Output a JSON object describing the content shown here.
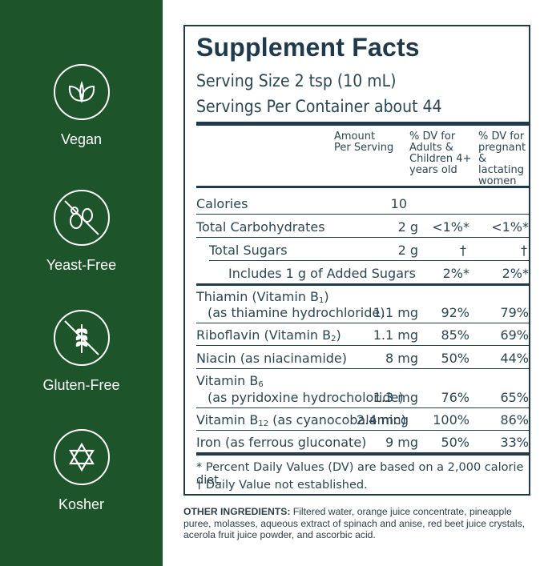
{
  "badges": [
    {
      "label": "Vegan",
      "icon": "leaf-icon"
    },
    {
      "label": "Yeast-Free",
      "icon": "no-yeast-icon"
    },
    {
      "label": "Gluten-Free",
      "icon": "no-wheat-icon"
    },
    {
      "label": "Kosher",
      "icon": "star-of-david-icon"
    }
  ],
  "facts": {
    "title": "Supplement Facts",
    "serving_size": "Serving Size 2 tsp (10 mL)",
    "servings_per_container": "Servings Per Container about 44",
    "col_amount": [
      "Amount",
      "Per Serving"
    ],
    "col_dv_adults": [
      "% DV for",
      "Adults &",
      "Children 4+",
      "years old"
    ],
    "col_dv_pregnant": [
      "% DV for",
      "pregnant",
      "& lactating",
      "women"
    ],
    "rows": [
      {
        "name": "Calories",
        "amount": "10",
        "dv_adults": "",
        "dv_pregnant": ""
      },
      {
        "name": "Total Carbohydrates",
        "amount": "2 g",
        "dv_adults": "<1%*",
        "dv_pregnant": "<1%*"
      },
      {
        "name": "Total Sugars",
        "amount": "2 g",
        "dv_adults": "†",
        "dv_pregnant": "†"
      },
      {
        "name": "Includes 1 g of Added Sugars",
        "amount": "",
        "dv_adults": "2%*",
        "dv_pregnant": "2%*"
      },
      {
        "name": "Thiamin (Vitamin B1)",
        "name_line2": "(as thiamine hydrochloride)",
        "amount": "1.1 mg",
        "dv_adults": "92%",
        "dv_pregnant": "79%"
      },
      {
        "name": "Riboflavin (Vitamin B2)",
        "amount": "1.1 mg",
        "dv_adults": "85%",
        "dv_pregnant": "69%"
      },
      {
        "name": "Niacin (as niacinamide)",
        "amount": "8 mg",
        "dv_adults": "50%",
        "dv_pregnant": "44%"
      },
      {
        "name": "Vitamin B6",
        "name_line2": "(as pyridoxine hydrocholoride)",
        "amount": "1.3 mg",
        "dv_adults": "76%",
        "dv_pregnant": "65%"
      },
      {
        "name": "Vitamin B12 (as cyanocobalamin)",
        "amount": "2.4 mcg",
        "dv_adults": "100%",
        "dv_pregnant": "86%"
      },
      {
        "name": "Iron (as ferrous gluconate)",
        "amount": "9 mg",
        "dv_adults": "50%",
        "dv_pregnant": "33%"
      }
    ],
    "footnote_dv": "* Percent Daily Values (DV) are based on a 2,000 calorie diet.",
    "footnote_dagger": "† Daily Value not established."
  },
  "other_ingredients": {
    "label": "OTHER INGREDIENTS:",
    "text": " Filtered water, orange juice concentrate, pineapple puree, molasses, aqueous extract of spinach and anise, red beet juice crystals, acerola fruit juice powder, and ascorbic acid."
  },
  "colors": {
    "sidebar": "#1e5429",
    "ink": "#1e3a4c"
  }
}
